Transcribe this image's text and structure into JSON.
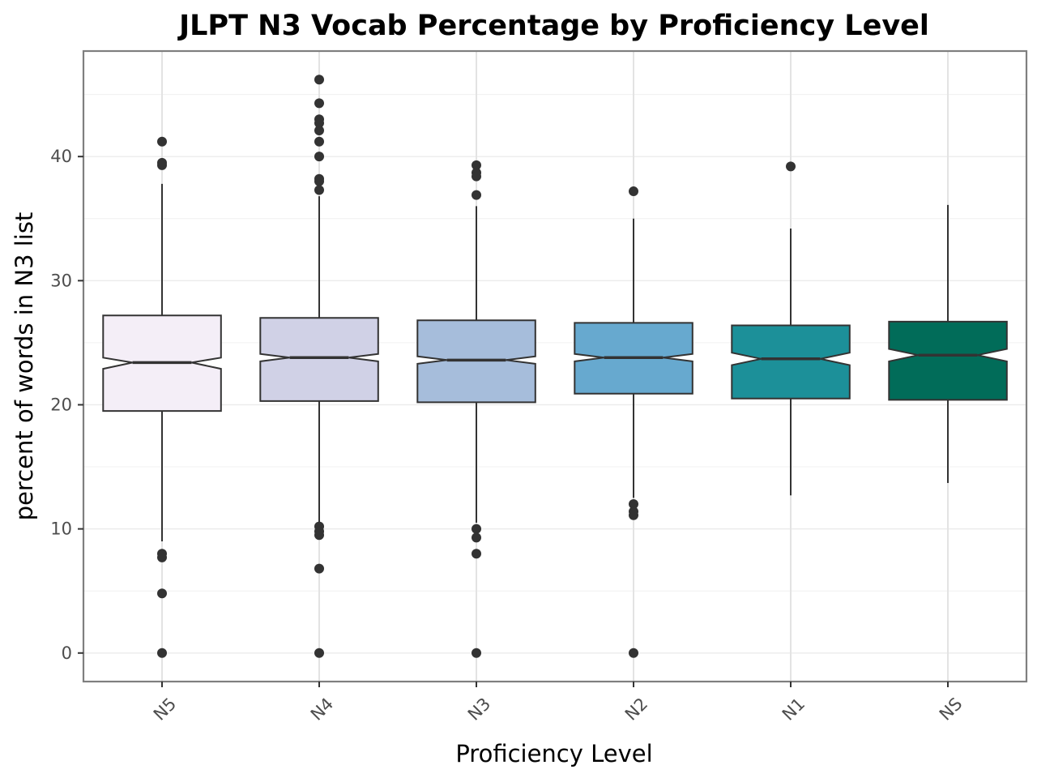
{
  "chart_data": {
    "type": "boxplot",
    "title": "JLPT N3 Vocab Percentage by Proficiency Level",
    "xlabel": "Proficiency Level",
    "ylabel": "percent of words in N3 list",
    "ylim": [
      -2.3,
      48.5
    ],
    "yticks": [
      0,
      10,
      20,
      30,
      40
    ],
    "grid": true,
    "notched": true,
    "categories": [
      "N5",
      "N4",
      "N3",
      "N2",
      "N1",
      "NS"
    ],
    "boxes": [
      {
        "category": "N5",
        "q1": 19.5,
        "median": 23.4,
        "q3": 27.2,
        "notch_low": 22.9,
        "notch_high": 23.8,
        "whisker_low": 9.0,
        "whisker_high": 37.8,
        "outliers": [
          41.2,
          39.5,
          39.3,
          8.0,
          7.7,
          4.8,
          0.0
        ],
        "color": "#f4eef7"
      },
      {
        "category": "N4",
        "q1": 20.3,
        "median": 23.8,
        "q3": 27.0,
        "notch_low": 23.5,
        "notch_high": 24.1,
        "whisker_low": 10.5,
        "whisker_high": 36.8,
        "outliers": [
          46.2,
          44.3,
          43.0,
          42.7,
          42.1,
          41.2,
          40.0,
          38.2,
          38.0,
          37.3,
          10.2,
          9.8,
          9.5,
          6.8,
          0.0
        ],
        "color": "#d0d1e6"
      },
      {
        "category": "N3",
        "q1": 20.2,
        "median": 23.6,
        "q3": 26.8,
        "notch_low": 23.3,
        "notch_high": 23.9,
        "whisker_low": 10.5,
        "whisker_high": 36.0,
        "outliers": [
          39.3,
          38.7,
          38.4,
          36.9,
          10.0,
          9.3,
          8.0,
          0.0
        ],
        "color": "#a6bddb"
      },
      {
        "category": "N2",
        "q1": 20.9,
        "median": 23.8,
        "q3": 26.6,
        "notch_low": 23.5,
        "notch_high": 24.1,
        "whisker_low": 12.5,
        "whisker_high": 35.0,
        "outliers": [
          37.2,
          12.0,
          11.4,
          11.1,
          0.0
        ],
        "color": "#67a9cf"
      },
      {
        "category": "N1",
        "q1": 20.5,
        "median": 23.7,
        "q3": 26.4,
        "notch_low": 23.2,
        "notch_high": 24.2,
        "whisker_low": 12.7,
        "whisker_high": 34.2,
        "outliers": [
          39.2
        ],
        "color": "#1c9099"
      },
      {
        "category": "NS",
        "q1": 20.4,
        "median": 24.0,
        "q3": 26.7,
        "notch_low": 23.5,
        "notch_high": 24.5,
        "whisker_low": 13.7,
        "whisker_high": 36.1,
        "outliers": [],
        "color": "#016c59"
      }
    ]
  }
}
